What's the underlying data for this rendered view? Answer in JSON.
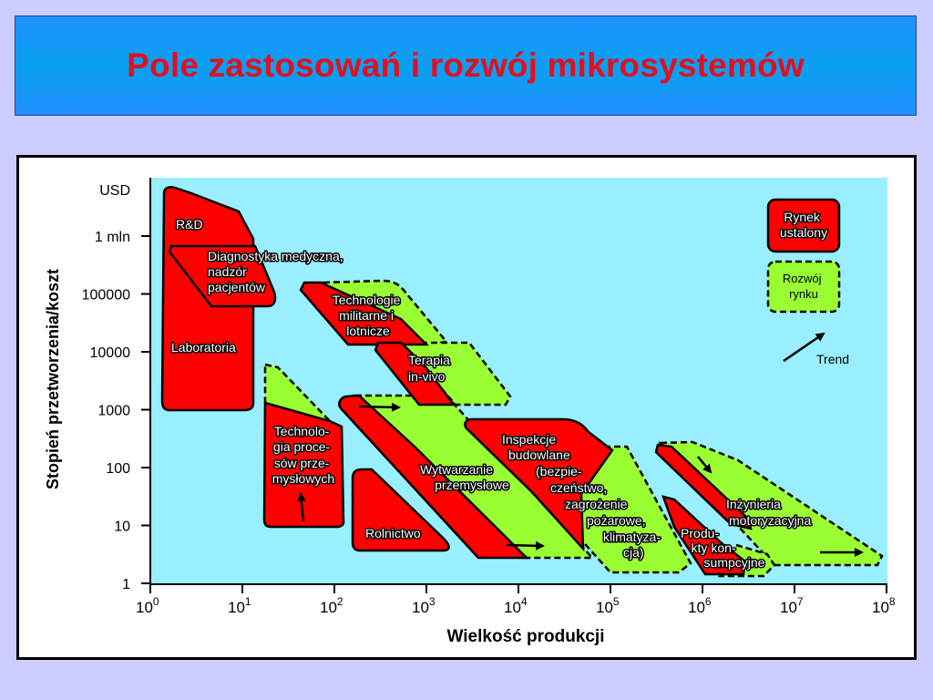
{
  "title": "Pole zastosowań i rozwój mikrosystemów",
  "colors": {
    "banner": "#1e90ff",
    "title": "#e01020",
    "plot_bg": "#99eeff",
    "established": "#ff0000",
    "development": "#99ff33"
  },
  "axes": {
    "ylabel": "Stopień przetworzenia/koszt",
    "xlabel": "Wielkość produkcji",
    "y_unit": "USD",
    "y_ticks": [
      "1 mln",
      "100000",
      "10000",
      "1000",
      "100",
      "10",
      "1"
    ],
    "x_ticks": [
      {
        "base": "10",
        "exp": "0"
      },
      {
        "base": "10",
        "exp": "1"
      },
      {
        "base": "10",
        "exp": "2"
      },
      {
        "base": "10",
        "exp": "3"
      },
      {
        "base": "10",
        "exp": "4"
      },
      {
        "base": "10",
        "exp": "5"
      },
      {
        "base": "10",
        "exp": "6"
      },
      {
        "base": "10",
        "exp": "7"
      },
      {
        "base": "10",
        "exp": "8"
      }
    ]
  },
  "regions": {
    "rd": "R&D",
    "laboratoria": "Laboratoria",
    "diagnostyka": [
      "Diagnostyka medyczna,",
      "nadzór",
      "pacjentów"
    ],
    "militarne": [
      "Technologie",
      "militarne i",
      "lotnicze"
    ],
    "terapia": [
      "Terapia",
      "in-vivo"
    ],
    "procesow": [
      "Technolo-",
      "gia proce-",
      "sów prze-",
      "mysłowych"
    ],
    "wytwarzanie": [
      "Wytwarzanie",
      "przemysłowe"
    ],
    "inspekcje": [
      "Inspekcje",
      "budowlane",
      "(bezpie-",
      "czeństwo,",
      "zagrożenie",
      "pożarowe,",
      "klimatyza-",
      "cja)"
    ],
    "rolnictwo": "Rolnictwo",
    "motoryzacja": [
      "Inżynieria",
      "motoryzacyjna"
    ],
    "konsumpcyjne": [
      "Produ-",
      "kty kon-",
      "sumpcyjne"
    ]
  },
  "legend": {
    "established": [
      "Rynek",
      "ustalony"
    ],
    "development": [
      "Rozwój",
      "rynku"
    ],
    "trend": "Trend"
  }
}
